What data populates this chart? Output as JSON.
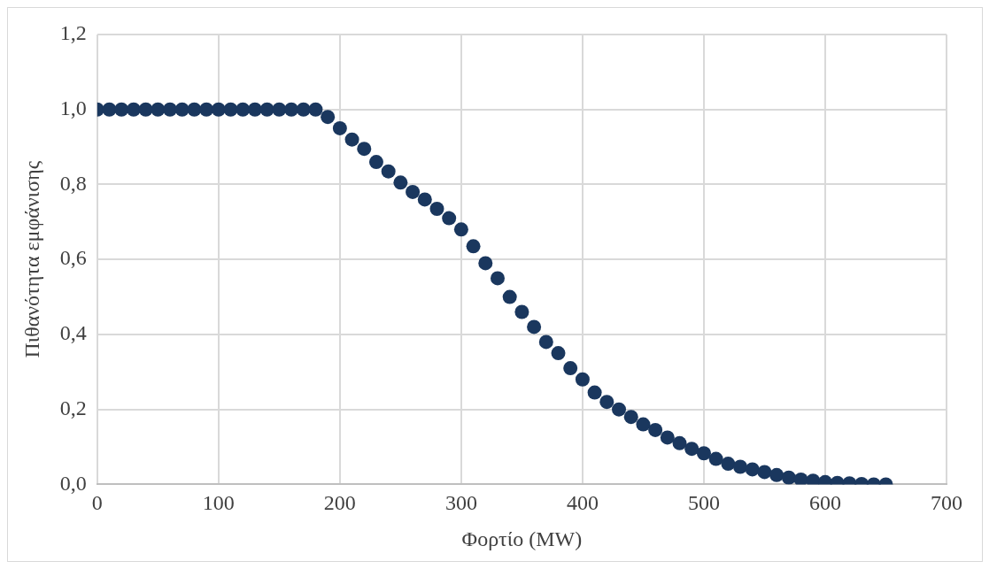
{
  "chart_data": {
    "type": "scatter",
    "xlabel": "Φορτίο (MW)",
    "ylabel": "Πιθανότητα εμφάνισης",
    "x": [
      0,
      10,
      20,
      30,
      40,
      50,
      60,
      70,
      80,
      90,
      100,
      110,
      120,
      130,
      140,
      150,
      160,
      170,
      180,
      190,
      200,
      210,
      220,
      230,
      240,
      250,
      260,
      270,
      280,
      290,
      300,
      310,
      320,
      330,
      340,
      350,
      360,
      370,
      380,
      390,
      400,
      410,
      420,
      430,
      440,
      450,
      460,
      470,
      480,
      490,
      500,
      510,
      520,
      530,
      540,
      550,
      560,
      570,
      580,
      590,
      600,
      610,
      620,
      630,
      640,
      650
    ],
    "series": [
      {
        "color": "#1a375e",
        "values": [
          1,
          1,
          1,
          1,
          1,
          1,
          1,
          1,
          1,
          1,
          1,
          1,
          1,
          1,
          1,
          1,
          1,
          1,
          1,
          0.98,
          0.95,
          0.92,
          0.895,
          0.86,
          0.835,
          0.805,
          0.78,
          0.76,
          0.735,
          0.71,
          0.68,
          0.635,
          0.59,
          0.55,
          0.5,
          0.46,
          0.42,
          0.38,
          0.35,
          0.31,
          0.28,
          0.245,
          0.22,
          0.2,
          0.18,
          0.16,
          0.145,
          0.125,
          0.11,
          0.095,
          0.083,
          0.068,
          0.055,
          0.047,
          0.04,
          0.033,
          0.025,
          0.018,
          0.013,
          0.01,
          0.006,
          0.004,
          0.003,
          0.001,
          0,
          0
        ]
      }
    ],
    "xlim": [
      0,
      700
    ],
    "xticks": [
      0,
      100,
      200,
      300,
      400,
      500,
      600,
      700
    ],
    "ylim": [
      0,
      1.2
    ],
    "yticks": [
      {
        "value": 0,
        "label": "0,0"
      },
      {
        "value": 0.2,
        "label": "0,2"
      },
      {
        "value": 0.4,
        "label": "0,4"
      },
      {
        "value": 0.6,
        "label": "0,6"
      },
      {
        "value": 0.8,
        "label": "0,8"
      },
      {
        "value": 1,
        "label": "1,0"
      },
      {
        "value": 1.2,
        "label": "1,2"
      }
    ],
    "grid": true,
    "legend": false,
    "marker": "circle"
  }
}
